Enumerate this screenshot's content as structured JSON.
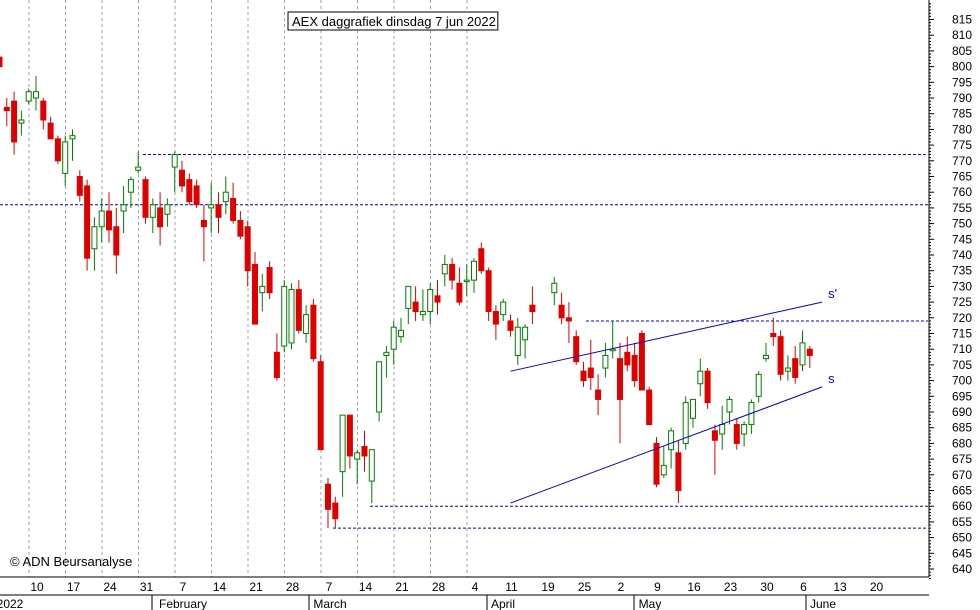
{
  "chart_data": {
    "type": "candlestick",
    "title": "AEX daggrafiek dinsdag 7 jun 2022",
    "copyright": "© ADN Beursanalyse",
    "ylim": [
      637,
      820
    ],
    "y_ticks": [
      640,
      645,
      650,
      655,
      660,
      665,
      670,
      675,
      680,
      685,
      690,
      695,
      700,
      705,
      710,
      715,
      720,
      725,
      730,
      735,
      740,
      745,
      750,
      755,
      760,
      765,
      770,
      775,
      780,
      785,
      790,
      795,
      800,
      805,
      810,
      815
    ],
    "x_day_labels": [
      "10",
      "17",
      "24",
      "31",
      "7",
      "14",
      "21",
      "28",
      "7",
      "14",
      "21",
      "28",
      "4",
      "11",
      "19",
      "25",
      "2",
      "9",
      "16",
      "23",
      "30",
      "6",
      "13",
      "20"
    ],
    "x_month_labels": [
      "2022",
      "February",
      "March",
      "April",
      "May",
      "June"
    ],
    "colors": {
      "up": "#008000",
      "down": "#e00000",
      "grid": "#a0a0a0",
      "level": "#0000cc"
    },
    "horizontal_levels": [
      772,
      756,
      719,
      660,
      653
    ],
    "trendlines": [
      {
        "label": "s'",
        "from": [
          "2022-04-11",
          703
        ],
        "to": [
          "2022-06-08",
          725
        ]
      },
      {
        "label": "s",
        "from": [
          "2022-04-11",
          661
        ],
        "to": [
          "2022-06-08",
          698
        ]
      }
    ],
    "candles": [
      {
        "d": "2022-01-03",
        "o": 803,
        "h": 807,
        "l": 800,
        "c": 800
      },
      {
        "d": "2022-01-04",
        "o": 787,
        "h": 790,
        "l": 781,
        "c": 786
      },
      {
        "d": "2022-01-05",
        "o": 789,
        "h": 792,
        "l": 772,
        "c": 776
      },
      {
        "d": "2022-01-06",
        "o": 782,
        "h": 786,
        "l": 778,
        "c": 783
      },
      {
        "d": "2022-01-07",
        "o": 789,
        "h": 793,
        "l": 788,
        "c": 792
      },
      {
        "d": "2022-01-10",
        "o": 790,
        "h": 797,
        "l": 786,
        "c": 792
      },
      {
        "d": "2022-01-11",
        "o": 789,
        "h": 790,
        "l": 780,
        "c": 783
      },
      {
        "d": "2022-01-12",
        "o": 782,
        "h": 784,
        "l": 777,
        "c": 777
      },
      {
        "d": "2022-01-13",
        "o": 777,
        "h": 778,
        "l": 769,
        "c": 770
      },
      {
        "d": "2022-01-14",
        "o": 766,
        "h": 778,
        "l": 762,
        "c": 776
      },
      {
        "d": "2022-01-17",
        "o": 777,
        "h": 780,
        "l": 770,
        "c": 778
      },
      {
        "d": "2022-01-18",
        "o": 765,
        "h": 767,
        "l": 757,
        "c": 759
      },
      {
        "d": "2022-01-19",
        "o": 762,
        "h": 764,
        "l": 735,
        "c": 739
      },
      {
        "d": "2022-01-20",
        "o": 742,
        "h": 752,
        "l": 735,
        "c": 749
      },
      {
        "d": "2022-01-21",
        "o": 749,
        "h": 758,
        "l": 744,
        "c": 754
      },
      {
        "d": "2022-01-24",
        "o": 754,
        "h": 760,
        "l": 744,
        "c": 748
      },
      {
        "d": "2022-01-25",
        "o": 749,
        "h": 755,
        "l": 734,
        "c": 740
      },
      {
        "d": "2022-01-26",
        "o": 754,
        "h": 762,
        "l": 747,
        "c": 756
      },
      {
        "d": "2022-01-27",
        "o": 760,
        "h": 765,
        "l": 755,
        "c": 764
      },
      {
        "d": "2022-01-28",
        "o": 767,
        "h": 773,
        "l": 766,
        "c": 768
      },
      {
        "d": "2022-01-31",
        "o": 764,
        "h": 765,
        "l": 750,
        "c": 752
      },
      {
        "d": "2022-02-01",
        "o": 752,
        "h": 758,
        "l": 747,
        "c": 756
      },
      {
        "d": "2022-02-02",
        "o": 755,
        "h": 760,
        "l": 743,
        "c": 749
      },
      {
        "d": "2022-02-03",
        "o": 753,
        "h": 758,
        "l": 749,
        "c": 756
      },
      {
        "d": "2022-02-04",
        "o": 768,
        "h": 773,
        "l": 760,
        "c": 772
      },
      {
        "d": "2022-02-07",
        "o": 767,
        "h": 770,
        "l": 760,
        "c": 762
      },
      {
        "d": "2022-02-08",
        "o": 764,
        "h": 766,
        "l": 756,
        "c": 757
      },
      {
        "d": "2022-02-09",
        "o": 762,
        "h": 764,
        "l": 755,
        "c": 756
      },
      {
        "d": "2022-02-10",
        "o": 751,
        "h": 756,
        "l": 738,
        "c": 749
      },
      {
        "d": "2022-02-11",
        "o": 755,
        "h": 763,
        "l": 747,
        "c": 756
      },
      {
        "d": "2022-02-14",
        "o": 756,
        "h": 760,
        "l": 747,
        "c": 752
      },
      {
        "d": "2022-02-15",
        "o": 757,
        "h": 765,
        "l": 753,
        "c": 760
      },
      {
        "d": "2022-02-16",
        "o": 758,
        "h": 763,
        "l": 750,
        "c": 751
      },
      {
        "d": "2022-02-17",
        "o": 751,
        "h": 754,
        "l": 745,
        "c": 746
      },
      {
        "d": "2022-02-18",
        "o": 749,
        "h": 751,
        "l": 730,
        "c": 735
      },
      {
        "d": "2022-02-21",
        "o": 737,
        "h": 741,
        "l": 718,
        "c": 718
      },
      {
        "d": "2022-02-22",
        "o": 728,
        "h": 734,
        "l": 722,
        "c": 730
      },
      {
        "d": "2022-02-23",
        "o": 736,
        "h": 738,
        "l": 726,
        "c": 728
      },
      {
        "d": "2022-02-24",
        "o": 709,
        "h": 715,
        "l": 700,
        "c": 701
      },
      {
        "d": "2022-02-25",
        "o": 711,
        "h": 732,
        "l": 709,
        "c": 730
      },
      {
        "d": "2022-02-28",
        "o": 712,
        "h": 731,
        "l": 710,
        "c": 729
      },
      {
        "d": "2022-03-01",
        "o": 729,
        "h": 732,
        "l": 715,
        "c": 716
      },
      {
        "d": "2022-03-02",
        "o": 715,
        "h": 724,
        "l": 712,
        "c": 721
      },
      {
        "d": "2022-03-03",
        "o": 724,
        "h": 726,
        "l": 706,
        "c": 707
      },
      {
        "d": "2022-03-04",
        "o": 706,
        "h": 708,
        "l": 678,
        "c": 678
      },
      {
        "d": "2022-03-07",
        "o": 667,
        "h": 669,
        "l": 653,
        "c": 659
      },
      {
        "d": "2022-03-08",
        "o": 661,
        "h": 663,
        "l": 653,
        "c": 656
      },
      {
        "d": "2022-03-09",
        "o": 671,
        "h": 689,
        "l": 663,
        "c": 689
      },
      {
        "d": "2022-03-10",
        "o": 689,
        "h": 689,
        "l": 672,
        "c": 676
      },
      {
        "d": "2022-03-11",
        "o": 675,
        "h": 678,
        "l": 667,
        "c": 677
      },
      {
        "d": "2022-03-14",
        "o": 679,
        "h": 684,
        "l": 671,
        "c": 676
      },
      {
        "d": "2022-03-15",
        "o": 668,
        "h": 678,
        "l": 661,
        "c": 678
      },
      {
        "d": "2022-03-16",
        "o": 690,
        "h": 706,
        "l": 687,
        "c": 706
      },
      {
        "d": "2022-03-17",
        "o": 708,
        "h": 711,
        "l": 701,
        "c": 709
      },
      {
        "d": "2022-03-18",
        "o": 710,
        "h": 719,
        "l": 705,
        "c": 717
      },
      {
        "d": "2022-03-21",
        "o": 714,
        "h": 720,
        "l": 712,
        "c": 716
      },
      {
        "d": "2022-03-22",
        "o": 723,
        "h": 730,
        "l": 718,
        "c": 730
      },
      {
        "d": "2022-03-23",
        "o": 725,
        "h": 730,
        "l": 719,
        "c": 722
      },
      {
        "d": "2022-03-24",
        "o": 721,
        "h": 729,
        "l": 719,
        "c": 722
      },
      {
        "d": "2022-03-25",
        "o": 722,
        "h": 731,
        "l": 718,
        "c": 729
      },
      {
        "d": "2022-03-28",
        "o": 727,
        "h": 732,
        "l": 721,
        "c": 725
      },
      {
        "d": "2022-03-29",
        "o": 734,
        "h": 740,
        "l": 730,
        "c": 737
      },
      {
        "d": "2022-03-30",
        "o": 737,
        "h": 739,
        "l": 729,
        "c": 732
      },
      {
        "d": "2022-03-31",
        "o": 731,
        "h": 736,
        "l": 724,
        "c": 725
      },
      {
        "d": "2022-04-01",
        "o": 732,
        "h": 737,
        "l": 727,
        "c": 732
      },
      {
        "d": "2022-04-04",
        "o": 732,
        "h": 739,
        "l": 728,
        "c": 738
      },
      {
        "d": "2022-04-05",
        "o": 742,
        "h": 744,
        "l": 734,
        "c": 735
      },
      {
        "d": "2022-04-06",
        "o": 735,
        "h": 736,
        "l": 719,
        "c": 722
      },
      {
        "d": "2022-04-07",
        "o": 722,
        "h": 724,
        "l": 713,
        "c": 718
      },
      {
        "d": "2022-04-08",
        "o": 721,
        "h": 726,
        "l": 719,
        "c": 725
      },
      {
        "d": "2022-04-11",
        "o": 719,
        "h": 721,
        "l": 714,
        "c": 716
      },
      {
        "d": "2022-04-12",
        "o": 708,
        "h": 720,
        "l": 705,
        "c": 717
      },
      {
        "d": "2022-04-13",
        "o": 713,
        "h": 718,
        "l": 707,
        "c": 717
      },
      {
        "d": "2022-04-14",
        "o": 724,
        "h": 730,
        "l": 718,
        "c": 722
      },
      {
        "d": "2022-04-19",
        "o": 728,
        "h": 733,
        "l": 724,
        "c": 731
      },
      {
        "d": "2022-04-20",
        "o": 724,
        "h": 728,
        "l": 718,
        "c": 720
      },
      {
        "d": "2022-04-21",
        "o": 720,
        "h": 725,
        "l": 712,
        "c": 719
      },
      {
        "d": "2022-04-22",
        "o": 714,
        "h": 716,
        "l": 705,
        "c": 706
      },
      {
        "d": "2022-04-25",
        "o": 703,
        "h": 706,
        "l": 698,
        "c": 700
      },
      {
        "d": "2022-04-26",
        "o": 704,
        "h": 713,
        "l": 697,
        "c": 701
      },
      {
        "d": "2022-04-27",
        "o": 697,
        "h": 702,
        "l": 689,
        "c": 694
      },
      {
        "d": "2022-04-28",
        "o": 704,
        "h": 712,
        "l": 701,
        "c": 708
      },
      {
        "d": "2022-04-29",
        "o": 710,
        "h": 719,
        "l": 707,
        "c": 710
      },
      {
        "d": "2022-05-02",
        "o": 707,
        "h": 712,
        "l": 680,
        "c": 694
      },
      {
        "d": "2022-05-03",
        "o": 709,
        "h": 714,
        "l": 703,
        "c": 705
      },
      {
        "d": "2022-05-04",
        "o": 708,
        "h": 712,
        "l": 698,
        "c": 700
      },
      {
        "d": "2022-05-05",
        "o": 715,
        "h": 716,
        "l": 697,
        "c": 697
      },
      {
        "d": "2022-05-06",
        "o": 697,
        "h": 698,
        "l": 686,
        "c": 686
      },
      {
        "d": "2022-05-09",
        "o": 680,
        "h": 682,
        "l": 666,
        "c": 667
      },
      {
        "d": "2022-05-10",
        "o": 670,
        "h": 679,
        "l": 669,
        "c": 673
      },
      {
        "d": "2022-05-11",
        "o": 678,
        "h": 685,
        "l": 672,
        "c": 684
      },
      {
        "d": "2022-05-12",
        "o": 677,
        "h": 681,
        "l": 661,
        "c": 665
      },
      {
        "d": "2022-05-13",
        "o": 680,
        "h": 695,
        "l": 678,
        "c": 693
      },
      {
        "d": "2022-05-16",
        "o": 688,
        "h": 694,
        "l": 685,
        "c": 694
      },
      {
        "d": "2022-05-17",
        "o": 699,
        "h": 707,
        "l": 695,
        "c": 703
      },
      {
        "d": "2022-05-18",
        "o": 703,
        "h": 704,
        "l": 691,
        "c": 693
      },
      {
        "d": "2022-05-19",
        "o": 684,
        "h": 686,
        "l": 670,
        "c": 681
      },
      {
        "d": "2022-05-20",
        "o": 683,
        "h": 692,
        "l": 678,
        "c": 686
      },
      {
        "d": "2022-05-23",
        "o": 690,
        "h": 695,
        "l": 686,
        "c": 694
      },
      {
        "d": "2022-05-24",
        "o": 686,
        "h": 688,
        "l": 678,
        "c": 680
      },
      {
        "d": "2022-05-25",
        "o": 683,
        "h": 687,
        "l": 679,
        "c": 686
      },
      {
        "d": "2022-05-26",
        "o": 686,
        "h": 694,
        "l": 683,
        "c": 693
      },
      {
        "d": "2022-05-27",
        "o": 695,
        "h": 703,
        "l": 693,
        "c": 702
      },
      {
        "d": "2022-05-30",
        "o": 707,
        "h": 712,
        "l": 706,
        "c": 708
      },
      {
        "d": "2022-05-31",
        "o": 715,
        "h": 720,
        "l": 711,
        "c": 714
      },
      {
        "d": "2022-06-01",
        "o": 714,
        "h": 716,
        "l": 700,
        "c": 702
      },
      {
        "d": "2022-06-02",
        "o": 703,
        "h": 708,
        "l": 700,
        "c": 704
      },
      {
        "d": "2022-06-03",
        "o": 707,
        "h": 711,
        "l": 699,
        "c": 701
      },
      {
        "d": "2022-06-06",
        "o": 705,
        "h": 716,
        "l": 703,
        "c": 712
      },
      {
        "d": "2022-06-07",
        "o": 710,
        "h": 711,
        "l": 704,
        "c": 708
      }
    ]
  }
}
